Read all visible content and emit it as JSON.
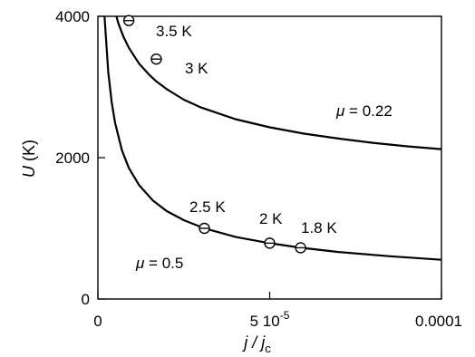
{
  "chart_data": {
    "type": "line",
    "xlabel": {
      "main": "j / j",
      "sub": "c"
    },
    "ylabel": {
      "italic": "U",
      "rest": " (K)"
    },
    "xlim": [
      0,
      0.0001
    ],
    "ylim": [
      0,
      4000
    ],
    "grid": false,
    "x_ticks": [
      {
        "value": 0,
        "label": "0"
      },
      {
        "value": 5e-05,
        "label": "5 10",
        "sup": "-5"
      },
      {
        "value": 0.0001,
        "label": "0.0001"
      }
    ],
    "y_ticks": [
      {
        "value": 0,
        "label": "0"
      },
      {
        "value": 2000,
        "label": "2000"
      },
      {
        "value": 4000,
        "label": "4000"
      }
    ],
    "series": [
      {
        "name": "μ = 0.22",
        "mu": 0.22,
        "x": [
          3e-06,
          4.5e-06,
          6e-06,
          7.5e-06,
          9e-06,
          1.2e-05,
          1.5e-05,
          1.7e-05,
          2e-05,
          2.5e-05,
          3e-05,
          4e-05,
          5e-05,
          6e-05,
          7e-05,
          8e-05,
          9e-05,
          0.0001
        ],
        "y": [
          4540,
          4155,
          3895,
          3705,
          3555,
          3330,
          3170,
          3080,
          2970,
          2820,
          2710,
          2545,
          2430,
          2340,
          2270,
          2210,
          2160,
          2120
        ]
      },
      {
        "name": "μ = 0.5",
        "mu": 0.5,
        "x": [
          1e-06,
          1.5e-06,
          2e-06,
          3e-06,
          4e-06,
          5e-06,
          7e-06,
          9e-06,
          1.2e-05,
          1.6e-05,
          2e-05,
          2.5e-05,
          3.1e-05,
          4e-05,
          5e-05,
          5.9e-05,
          7e-05,
          8.5e-05,
          0.0001
        ],
        "y": [
          5570,
          4550,
          3940,
          3215,
          2785,
          2490,
          2105,
          1855,
          1610,
          1395,
          1245,
          1115,
          1000,
          880,
          790,
          725,
          665,
          605,
          555
        ]
      }
    ],
    "points": [
      {
        "label": "3.5 K",
        "x": 9e-06,
        "y": 3940
      },
      {
        "label": "3 K",
        "x": 1.7e-05,
        "y": 3395
      },
      {
        "label": "2.5 K",
        "x": 3.1e-05,
        "y": 1000
      },
      {
        "label": "2 K",
        "x": 5e-05,
        "y": 790
      },
      {
        "label": "1.8 K",
        "x": 5.9e-05,
        "y": 725
      }
    ],
    "annotations": [
      {
        "text": "μ = 0.22",
        "italic": "μ",
        "rest": " = 0.22"
      },
      {
        "text": "μ = 0.5",
        "italic": "μ",
        "rest": " = 0.5"
      }
    ]
  }
}
